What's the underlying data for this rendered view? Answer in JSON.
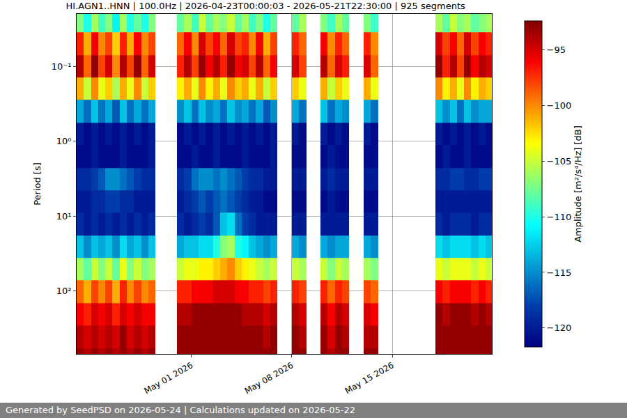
{
  "chart_data": {
    "type": "heatmap",
    "title": "HI.AGN1..HNN | 100.0Hz | 2026-04-23T00:00:03 - 2026-05-21T22:30:00 | 925 segments",
    "ylabel": "Period [s]",
    "annotations": [
      "Generated by SeedPSD on 2026-05-24 | Calculations updated on 2026-05-22"
    ],
    "color": "Jet",
    "log": "y",
    "grid": true,
    "xlim": [
      "2026-04-23T00:00:00",
      "2026-05-21T22:30:00"
    ],
    "xticks": [
      {
        "value": "2026-05-01",
        "label": "May 01 2026"
      },
      {
        "value": "2026-05-08",
        "label": "May 08 2026"
      },
      {
        "value": "2026-05-15",
        "label": "May 15 2026"
      }
    ],
    "ylim": [
      690,
      0.02
    ],
    "yticks": [
      {
        "value": 0.1,
        "label": "10⁻¹"
      },
      {
        "value": 1,
        "label": "10⁰"
      },
      {
        "value": 10,
        "label": "10¹"
      },
      {
        "value": 100,
        "label": "10²"
      }
    ],
    "zlabel": "Amplitude [m²/s⁴/Hz] [dB]",
    "zlim": [
      -121.7,
      -92.4
    ],
    "zticks": [
      {
        "value": -95,
        "label": "−95"
      },
      {
        "value": -100,
        "label": "−100"
      },
      {
        "value": -105,
        "label": "−105"
      },
      {
        "value": -110,
        "label": "−110"
      },
      {
        "value": -115,
        "label": "−115"
      },
      {
        "value": -120,
        "label": "−120"
      }
    ],
    "x": [
      "2026-04-23T06:00",
      "2026-04-23T18:00",
      "2026-04-24T06:00",
      "2026-04-24T18:00",
      "2026-04-25T06:00",
      "2026-04-25T18:00",
      "2026-04-26T06:00",
      "2026-04-26T18:00",
      "2026-04-27T06:00",
      "2026-04-27T18:00",
      "2026-04-28T06:00",
      "2026-04-28T18:00",
      "2026-04-29T06:00",
      "2026-04-29T18:00",
      "2026-04-30T06:00",
      "2026-04-30T18:00",
      "2026-05-01T06:00",
      "2026-05-01T18:00",
      "2026-05-02T06:00",
      "2026-05-02T18:00",
      "2026-05-03T06:00",
      "2026-05-03T18:00",
      "2026-05-04T06:00",
      "2026-05-04T18:00",
      "2026-05-05T06:00",
      "2026-05-05T18:00",
      "2026-05-06T06:00",
      "2026-05-06T18:00",
      "2026-05-07T06:00",
      "2026-05-07T18:00",
      "2026-05-08T06:00",
      "2026-05-08T18:00",
      "2026-05-09T06:00",
      "2026-05-09T18:00",
      "2026-05-10T06:00",
      "2026-05-10T18:00",
      "2026-05-11T06:00",
      "2026-05-11T18:00",
      "2026-05-12T06:00",
      "2026-05-12T18:00",
      "2026-05-13T06:00",
      "2026-05-13T18:00",
      "2026-05-14T06:00",
      "2026-05-14T18:00",
      "2026-05-15T06:00",
      "2026-05-15T18:00",
      "2026-05-16T06:00",
      "2026-05-16T18:00",
      "2026-05-17T06:00",
      "2026-05-17T18:00",
      "2026-05-18T06:00",
      "2026-05-18T18:00",
      "2026-05-19T06:00",
      "2026-05-19T18:00",
      "2026-05-20T06:00",
      "2026-05-20T18:00",
      "2026-05-21T06:00",
      "2026-05-21T18:00"
    ],
    "y": [
      0.025,
      0.05,
      0.1,
      0.2,
      0.4,
      0.8,
      1.6,
      3.2,
      6.4,
      12.8,
      25.6,
      51.2,
      102.4,
      204.8,
      409.6,
      819.2
    ],
    "z": [
      [
        -107,
        -110,
        -106,
        -109,
        -107,
        -111,
        -106,
        -110,
        -108,
        -110,
        -107,
        null,
        null,
        null,
        -108,
        -106,
        -109,
        -105,
        -108,
        -106,
        -107,
        -105,
        -108,
        -106,
        -109,
        -107,
        -110,
        -108,
        null,
        null,
        -108,
        -106,
        null,
        null,
        -107,
        -109,
        -106,
        -108,
        null,
        null,
        -107,
        -109,
        null,
        null,
        null,
        null,
        null,
        null,
        null,
        null,
        -106,
        -108,
        -105,
        -107,
        -106,
        -108,
        -107,
        -106
      ],
      [
        -97,
        -101,
        -96,
        -100,
        -98,
        -102,
        -97,
        -101,
        -96,
        -100,
        -98,
        null,
        null,
        null,
        -99,
        -96,
        -100,
        -95,
        -98,
        -96,
        -99,
        -95,
        -98,
        -97,
        -100,
        -96,
        -101,
        -98,
        null,
        null,
        -97,
        -99,
        null,
        null,
        -96,
        -100,
        -97,
        -99,
        null,
        null,
        -97,
        -100,
        null,
        null,
        null,
        null,
        null,
        null,
        null,
        null,
        -95,
        -98,
        -96,
        -99,
        -95,
        -98,
        -96,
        -97
      ],
      [
        -94,
        -99,
        -93,
        -98,
        -95,
        -100,
        -94,
        -98,
        -93,
        -99,
        -95,
        null,
        null,
        null,
        -97,
        -94,
        -98,
        -93,
        -96,
        -94,
        -97,
        -93,
        -96,
        -95,
        -98,
        -94,
        -99,
        -96,
        null,
        null,
        -95,
        -98,
        null,
        null,
        -94,
        -99,
        -95,
        -97,
        null,
        null,
        -95,
        -99,
        null,
        null,
        null,
        null,
        null,
        null,
        null,
        null,
        -93,
        -97,
        -94,
        -98,
        -93,
        -96,
        -94,
        -95
      ],
      [
        -101,
        -105,
        -100,
        -104,
        -102,
        -106,
        -101,
        -104,
        -100,
        -105,
        -102,
        null,
        null,
        null,
        -103,
        -101,
        -104,
        -100,
        -103,
        -101,
        -104,
        -100,
        -102,
        -101,
        -104,
        -101,
        -105,
        -102,
        null,
        null,
        -102,
        -104,
        null,
        null,
        -101,
        -105,
        -102,
        -104,
        null,
        null,
        -101,
        -104,
        null,
        null,
        null,
        null,
        null,
        null,
        null,
        null,
        -100,
        -103,
        -101,
        -104,
        -100,
        -103,
        -101,
        -102
      ],
      [
        -114,
        -116,
        -113,
        -116,
        -114,
        -117,
        -113,
        -116,
        -114,
        -116,
        -114,
        null,
        null,
        null,
        -115,
        -113,
        -116,
        -113,
        -115,
        -114,
        -116,
        -113,
        -115,
        -114,
        -116,
        -114,
        -117,
        -115,
        null,
        null,
        -114,
        -116,
        null,
        null,
        -113,
        -116,
        -114,
        -115,
        null,
        null,
        -114,
        -116,
        null,
        null,
        null,
        null,
        null,
        null,
        null,
        null,
        -113,
        -115,
        -113,
        -116,
        -113,
        -115,
        -114,
        -114
      ],
      [
        -120,
        -121,
        -120,
        -121,
        -120,
        -121,
        -120,
        -121,
        -120,
        -121,
        -120,
        null,
        null,
        null,
        -121,
        -120,
        -121,
        -120,
        -121,
        -120,
        -121,
        -120,
        -121,
        -120,
        -121,
        -120,
        -121,
        -120,
        null,
        null,
        -120,
        -121,
        null,
        null,
        -120,
        -121,
        -120,
        -121,
        null,
        null,
        -120,
        -121,
        null,
        null,
        null,
        null,
        null,
        null,
        null,
        null,
        -120,
        -121,
        -120,
        -121,
        -120,
        -121,
        -120,
        -121
      ],
      [
        -121,
        -121,
        -120,
        -121,
        -121,
        -121,
        -120,
        -121,
        -121,
        -121,
        -120,
        null,
        null,
        null,
        -121,
        -121,
        -120,
        -121,
        -121,
        -120,
        -121,
        -121,
        -121,
        -120,
        -121,
        -121,
        -121,
        -120,
        null,
        null,
        -121,
        -121,
        null,
        null,
        -121,
        -120,
        -121,
        -121,
        null,
        null,
        -121,
        -121,
        null,
        null,
        null,
        null,
        null,
        null,
        null,
        null,
        -121,
        -120,
        -121,
        -121,
        -120,
        -121,
        -121,
        -121
      ],
      [
        -119,
        -119,
        -118,
        -117,
        -115,
        -115,
        -116,
        -117,
        -118,
        -119,
        -119,
        null,
        null,
        null,
        -119,
        -118,
        -116,
        -115,
        -115,
        -116,
        -115,
        -116,
        -117,
        -118,
        -119,
        -119,
        -120,
        -120,
        null,
        null,
        -120,
        -120,
        null,
        null,
        -120,
        -119,
        -120,
        -120,
        null,
        null,
        -120,
        -120,
        null,
        null,
        null,
        null,
        null,
        null,
        null,
        null,
        -119,
        -119,
        -118,
        -118,
        -119,
        -119,
        -118,
        -118
      ],
      [
        -120,
        -120,
        -119,
        -119,
        -118,
        -118,
        -119,
        -119,
        -120,
        -120,
        -120,
        null,
        null,
        null,
        -120,
        -119,
        -118,
        -117,
        -118,
        -117,
        -116,
        -117,
        -118,
        -119,
        -120,
        -120,
        -121,
        -121,
        null,
        null,
        -121,
        -121,
        null,
        null,
        -121,
        -120,
        -121,
        -121,
        null,
        null,
        -121,
        -121,
        null,
        null,
        null,
        null,
        null,
        null,
        null,
        null,
        -120,
        -120,
        -120,
        -120,
        -120,
        -120,
        -120,
        -120
      ],
      [
        -119,
        -120,
        -119,
        -120,
        -119,
        -120,
        -119,
        -120,
        -119,
        -120,
        -119,
        null,
        null,
        null,
        -119,
        -120,
        -119,
        -118,
        -119,
        -117,
        -113,
        -112,
        -116,
        -118,
        -119,
        -120,
        -120,
        -120,
        null,
        null,
        -120,
        -120,
        null,
        null,
        -120,
        -120,
        -120,
        -120,
        null,
        null,
        -120,
        -120,
        null,
        null,
        null,
        null,
        null,
        null,
        null,
        null,
        -119,
        -120,
        -119,
        -119,
        -119,
        -120,
        -119,
        -119
      ],
      [
        -113,
        -115,
        -113,
        -114,
        -113,
        -115,
        -112,
        -114,
        -113,
        -115,
        -113,
        null,
        null,
        null,
        -114,
        -113,
        -113,
        -112,
        -112,
        -110,
        -107,
        -106,
        -110,
        -111,
        -113,
        -114,
        -115,
        -114,
        null,
        null,
        -114,
        -115,
        null,
        null,
        -114,
        -115,
        -114,
        -114,
        null,
        null,
        -114,
        -115,
        null,
        null,
        null,
        null,
        null,
        null,
        null,
        null,
        -112,
        -113,
        -112,
        -112,
        -112,
        -113,
        -112,
        -113
      ],
      [
        -106,
        -108,
        -105,
        -107,
        -105,
        -108,
        -104,
        -107,
        -105,
        -107,
        -106,
        null,
        null,
        null,
        -105,
        -104,
        -104,
        -103,
        -103,
        -102,
        -101,
        -100,
        -102,
        -103,
        -104,
        -105,
        -106,
        -105,
        null,
        null,
        -105,
        -106,
        null,
        null,
        -105,
        -107,
        -105,
        -106,
        null,
        null,
        -106,
        -107,
        null,
        null,
        null,
        null,
        null,
        null,
        null,
        null,
        -104,
        -105,
        -104,
        -104,
        -104,
        -105,
        -104,
        -105
      ],
      [
        -99,
        -101,
        -98,
        -100,
        -98,
        -101,
        -97,
        -100,
        -98,
        -100,
        -99,
        null,
        null,
        null,
        -97,
        -97,
        -96,
        -96,
        -96,
        -95,
        -95,
        -95,
        -96,
        -96,
        -97,
        -97,
        -98,
        -97,
        null,
        null,
        -97,
        -98,
        null,
        null,
        -97,
        -99,
        -97,
        -98,
        null,
        null,
        -98,
        -99,
        null,
        null,
        null,
        null,
        null,
        null,
        null,
        null,
        -96,
        -97,
        -96,
        -96,
        -96,
        -97,
        -96,
        -97
      ],
      [
        -96,
        -97,
        -95,
        -96,
        -95,
        -97,
        -95,
        -96,
        -95,
        -96,
        -96,
        null,
        null,
        null,
        -94,
        -94,
        -93,
        -93,
        -93,
        -93,
        -93,
        -93,
        -93,
        -94,
        -94,
        -94,
        -95,
        -94,
        null,
        null,
        -94,
        -95,
        null,
        null,
        -94,
        -96,
        -94,
        -95,
        null,
        null,
        -95,
        -96,
        null,
        null,
        null,
        null,
        null,
        null,
        null,
        null,
        -93,
        -94,
        -93,
        -93,
        -93,
        -94,
        -93,
        -94
      ],
      [
        -94,
        -95,
        -94,
        -95,
        -94,
        -95,
        -93,
        -95,
        -94,
        -95,
        -94,
        null,
        null,
        null,
        -93,
        -93,
        -93,
        -93,
        -93,
        -93,
        -93,
        -93,
        -93,
        -93,
        -93,
        -93,
        -94,
        -93,
        null,
        null,
        -93,
        -94,
        null,
        null,
        -93,
        -95,
        -93,
        -94,
        null,
        null,
        -94,
        -94,
        null,
        null,
        null,
        null,
        null,
        null,
        null,
        null,
        -93,
        -93,
        -93,
        -93,
        -93,
        -93,
        -93,
        -93
      ],
      [
        -93,
        -94,
        -93,
        -94,
        -93,
        -94,
        -93,
        -94,
        -93,
        -94,
        -93,
        null,
        null,
        null,
        -93,
        -93,
        -93,
        -93,
        -93,
        -93,
        -93,
        -93,
        -93,
        -93,
        -93,
        -93,
        -93,
        -93,
        null,
        null,
        -93,
        -93,
        null,
        null,
        -93,
        -94,
        -93,
        -93,
        null,
        null,
        -93,
        -93,
        null,
        null,
        null,
        null,
        null,
        null,
        null,
        null,
        -93,
        -93,
        -93,
        -93,
        -93,
        -93,
        -93,
        -93
      ]
    ]
  }
}
